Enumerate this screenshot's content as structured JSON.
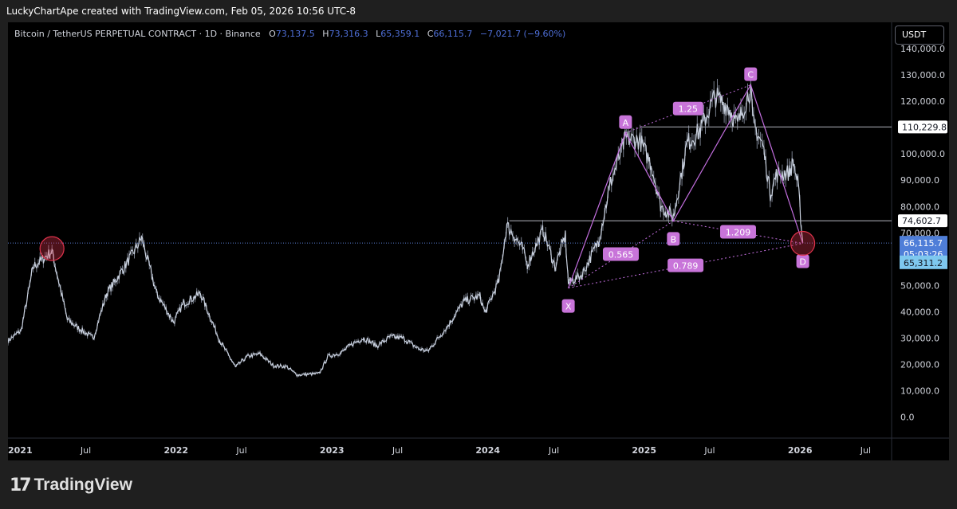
{
  "header": {
    "attribution": "LuckyChartApe created with TradingView.com, Feb 05, 2026 10:56 UTC-8"
  },
  "legend": {
    "symbol": "Bitcoin / TetherUS PERPETUAL CONTRACT · 1D · Binance",
    "open_key": "O",
    "open": "73,137.5",
    "high_key": "H",
    "high": "73,316.3",
    "low_key": "L",
    "low": "65,359.1",
    "close_key": "C",
    "close": "66,115.7",
    "change": "−7,021.7 (−9.60%)"
  },
  "currency": "USDT",
  "footer": {
    "brand": "TradingView"
  },
  "colors": {
    "pattern": "#c46fe0",
    "label_bg": "#c874d9",
    "price_line": "#5b7fd6",
    "level_line": "#b2b5be",
    "circle": "#e0334c",
    "current_tag": "#4f7ed8",
    "low_tag": "#7ec8ef"
  },
  "chart_data": {
    "type": "line",
    "title": "",
    "x_range": [
      "2021-01",
      "2026-09"
    ],
    "ylim": [
      -8000,
      150000
    ],
    "y_ticks": [
      {
        "value": 140000,
        "label": "140,000.0"
      },
      {
        "value": 130000,
        "label": "130,000.0"
      },
      {
        "value": 120000,
        "label": "120,000.0"
      },
      {
        "value": 100000,
        "label": "100,000.0"
      },
      {
        "value": 90000,
        "label": "90,000.0"
      },
      {
        "value": 80000,
        "label": "80,000.0"
      },
      {
        "value": 70000,
        "label": "70,000.0"
      },
      {
        "value": 50000,
        "label": "50,000.0"
      },
      {
        "value": 40000,
        "label": "40,000.0"
      },
      {
        "value": 30000,
        "label": "30,000.0"
      },
      {
        "value": 20000,
        "label": "20,000.0"
      },
      {
        "value": 10000,
        "label": "10,000.0"
      },
      {
        "value": 0,
        "label": "0.0"
      }
    ],
    "x_ticks": [
      {
        "date": "2021-01",
        "label": "2021",
        "bold": true
      },
      {
        "date": "2021-07",
        "label": "Jul",
        "bold": false
      },
      {
        "date": "2022-01",
        "label": "2022",
        "bold": true
      },
      {
        "date": "2022-07",
        "label": "Jul",
        "bold": false
      },
      {
        "date": "2023-01",
        "label": "2023",
        "bold": true
      },
      {
        "date": "2023-07",
        "label": "Jul",
        "bold": false
      },
      {
        "date": "2024-01",
        "label": "2024",
        "bold": true
      },
      {
        "date": "2024-07",
        "label": "Jul",
        "bold": false
      },
      {
        "date": "2025-01",
        "label": "2025",
        "bold": true
      },
      {
        "date": "2025-07",
        "label": "Jul",
        "bold": false
      },
      {
        "date": "2026-01",
        "label": "2026",
        "bold": true
      },
      {
        "date": "2026-07",
        "label": "Jul",
        "bold": false
      }
    ],
    "price_series": {
      "dates": [
        "2021-01-01",
        "2021-02-01",
        "2021-03-01",
        "2021-04-14",
        "2021-05-20",
        "2021-06-22",
        "2021-07-20",
        "2021-08-20",
        "2021-09-10",
        "2021-10-20",
        "2021-11-10",
        "2021-12-15",
        "2022-01-24",
        "2022-02-15",
        "2022-03-28",
        "2022-05-12",
        "2022-06-18",
        "2022-07-15",
        "2022-08-14",
        "2022-09-15",
        "2022-10-15",
        "2022-11-09",
        "2022-12-31",
        "2023-01-20",
        "2023-02-20",
        "2023-03-20",
        "2023-04-14",
        "2023-05-15",
        "2023-06-15",
        "2023-07-15",
        "2023-08-20",
        "2023-09-11",
        "2023-10-25",
        "2023-12-05",
        "2024-01-11",
        "2024-01-23",
        "2024-02-25",
        "2024-03-14",
        "2024-04-20",
        "2024-05-01",
        "2024-06-07",
        "2024-07-05",
        "2024-07-29",
        "2024-08-05",
        "2024-09-06",
        "2024-10-15",
        "2024-11-12",
        "2024-12-17",
        "2025-01-20",
        "2025-02-15",
        "2025-03-10",
        "2025-04-08",
        "2025-05-10",
        "2025-06-10",
        "2025-07-14",
        "2025-08-14",
        "2025-09-05",
        "2025-10-06",
        "2025-10-11",
        "2025-11-04",
        "2025-11-21",
        "2025-12-05",
        "2026-01-05",
        "2026-01-14",
        "2026-01-25",
        "2026-02-05"
      ],
      "close": [
        29000,
        33000,
        57000,
        63000,
        37000,
        33000,
        30000,
        47000,
        52000,
        62000,
        68000,
        47000,
        36000,
        43000,
        47000,
        29000,
        19000,
        23000,
        24000,
        19500,
        19200,
        16000,
        16500,
        23000,
        24500,
        28000,
        30000,
        27000,
        30500,
        30000,
        26000,
        25000,
        34000,
        44000,
        46000,
        39500,
        52000,
        73000,
        64000,
        58000,
        71000,
        57000,
        69000,
        51000,
        54000,
        67000,
        89000,
        106000,
        105000,
        96000,
        80000,
        76000,
        104000,
        109000,
        122000,
        118000,
        111000,
        125000,
        112000,
        103000,
        85000,
        92000,
        93000,
        97000,
        88000,
        66115.7
      ]
    },
    "levels": [
      {
        "name": "resistance",
        "value": 110229.8,
        "label": "110,229.8",
        "from": "2025-01-20"
      },
      {
        "name": "support",
        "value": 74602.7,
        "label": "74,602.7",
        "from": "2024-03-20"
      },
      {
        "name": "current",
        "value": 66115.7,
        "label": "66,115.7",
        "countdown": "05:03:26",
        "dotted": true
      },
      {
        "name": "low",
        "value": 65311.2,
        "label": "65,311.2"
      }
    ],
    "harmonic_pattern": {
      "points": [
        {
          "label": "X",
          "date": "2024-08-05",
          "value": 49000
        },
        {
          "label": "A",
          "date": "2024-12-17",
          "value": 108000
        },
        {
          "label": "B",
          "date": "2025-04-08",
          "value": 74500
        },
        {
          "label": "C",
          "date": "2025-10-06",
          "value": 126200
        },
        {
          "label": "D",
          "date": "2026-02-05",
          "value": 66000
        }
      ],
      "ratios": [
        {
          "label": "0.565",
          "from": "X",
          "to": "B"
        },
        {
          "label": "1.25",
          "from": "A",
          "to": "C"
        },
        {
          "label": "1.209",
          "from": "B",
          "to": "D"
        },
        {
          "label": "0.789",
          "from": "X",
          "to": "D"
        }
      ]
    },
    "circles": [
      {
        "date": "2021-04-14",
        "value": 64000
      },
      {
        "date": "2026-02-05",
        "value": 66000
      }
    ]
  }
}
